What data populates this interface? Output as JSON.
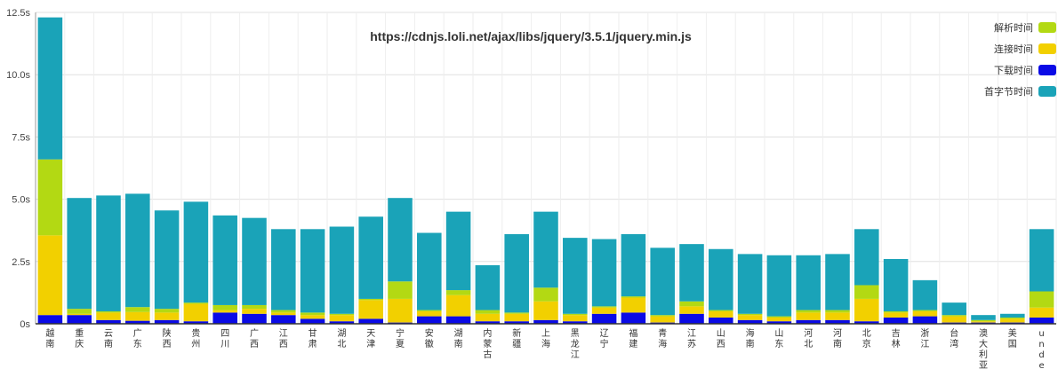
{
  "chart_data": {
    "type": "bar",
    "stacked": true,
    "title": "https://cdnjs.loli.net/ajax/libs/jquery/3.5.1/jquery.min.js",
    "ylim": [
      0,
      12.5
    ],
    "yticks": [
      "0s",
      "2.5s",
      "5.0s",
      "7.5s",
      "10.0s",
      "12.5s"
    ],
    "ytick_values": [
      0,
      2.5,
      5,
      7.5,
      10,
      12.5
    ],
    "grid": true,
    "legend_position": "top-right",
    "categories": [
      "越南",
      "重庆",
      "云南",
      "广东",
      "陕西",
      "贵州",
      "四川",
      "广西",
      "江西",
      "甘肃",
      "湖北",
      "天津",
      "宁夏",
      "安徽",
      "湖南",
      "内蒙古",
      "新疆",
      "上海",
      "黑龙江",
      "辽宁",
      "福建",
      "青海",
      "江苏",
      "山西",
      "海南",
      "山东",
      "河北",
      "河南",
      "北京",
      "吉林",
      "浙江",
      "台湾",
      "澳大利亚",
      "美国",
      "undef"
    ],
    "series": [
      {
        "name": "下载时间",
        "color": "#0a0ae6",
        "values": [
          0.35,
          0.35,
          0.15,
          0.12,
          0.15,
          0.1,
          0.45,
          0.4,
          0.35,
          0.2,
          0.1,
          0.2,
          0.05,
          0.3,
          0.3,
          0.1,
          0.1,
          0.15,
          0.1,
          0.4,
          0.45,
          0.05,
          0.4,
          0.25,
          0.15,
          0.1,
          0.15,
          0.15,
          0.1,
          0.25,
          0.3,
          0.05,
          0.05,
          0.05,
          0.25
        ]
      },
      {
        "name": "连接时间",
        "color": "#f2d000",
        "values": [
          3.2,
          0.05,
          0.3,
          0.35,
          0.3,
          0.7,
          0.1,
          0.2,
          0.1,
          0.15,
          0.25,
          0.75,
          0.95,
          0.2,
          0.85,
          0.3,
          0.3,
          0.75,
          0.25,
          0.25,
          0.6,
          0.25,
          0.3,
          0.25,
          0.2,
          0.15,
          0.3,
          0.3,
          0.9,
          0.2,
          0.2,
          0.25,
          0.05,
          0.15,
          0.4
        ]
      },
      {
        "name": "解析时间",
        "color": "#b3d913",
        "values": [
          3.05,
          0.2,
          0.05,
          0.2,
          0.15,
          0.05,
          0.2,
          0.15,
          0.1,
          0.1,
          0.05,
          0.05,
          0.7,
          0.05,
          0.2,
          0.15,
          0.05,
          0.55,
          0.05,
          0.05,
          0.05,
          0.05,
          0.2,
          0.05,
          0.05,
          0.05,
          0.1,
          0.1,
          0.55,
          0.05,
          0.05,
          0.05,
          0.05,
          0.05,
          0.65
        ]
      },
      {
        "name": "首字节时间",
        "color": "#1aa3b8",
        "values": [
          5.7,
          4.45,
          4.65,
          4.55,
          3.95,
          4.05,
          3.6,
          3.5,
          3.25,
          3.35,
          3.5,
          3.3,
          3.35,
          3.1,
          3.15,
          1.8,
          3.15,
          3.05,
          3.05,
          2.7,
          2.5,
          2.7,
          2.3,
          2.45,
          2.4,
          2.45,
          2.2,
          2.25,
          2.25,
          2.1,
          1.2,
          0.5,
          0.2,
          0.15,
          2.5
        ]
      }
    ],
    "legend_order": [
      "解析时间",
      "连接时间",
      "下载时间",
      "首字节时间"
    ]
  }
}
